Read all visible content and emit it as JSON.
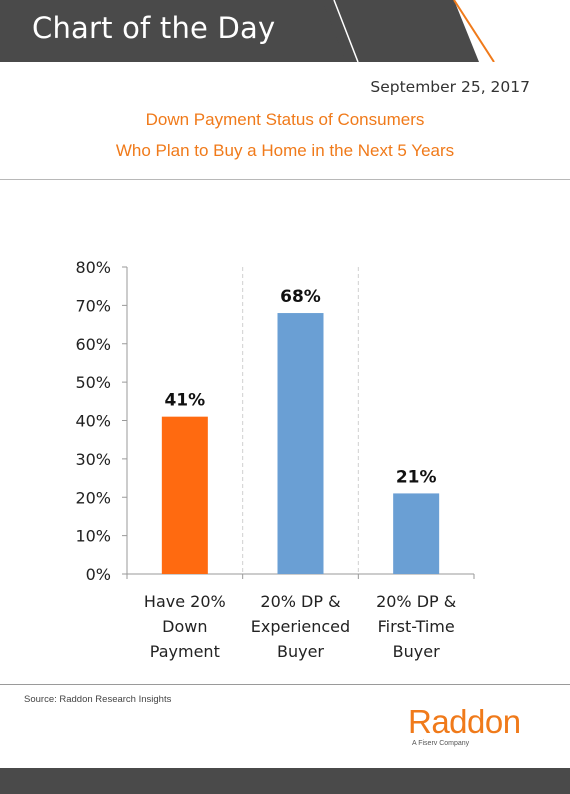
{
  "header": {
    "title": "Chart of the Day"
  },
  "date": "September 25, 2017",
  "footer": {
    "source": "Source: Raddon Research Insights",
    "logo": "Raddon",
    "logo_tagline": "A Fiserv Company"
  },
  "colors": {
    "accent": "#f07a1a",
    "highlight_bar": "#ff6a10",
    "bar": "#6a9fd4",
    "header_bg": "#4a4a4a"
  },
  "chart_data": {
    "type": "bar",
    "title": [
      "Down Payment Status of Consumers",
      "Who Plan to Buy a Home in the Next 5 Years"
    ],
    "xlabel": "",
    "ylabel": "",
    "categories": [
      [
        "Have 20%",
        "Down",
        "Payment"
      ],
      [
        "20% DP &",
        "Experienced",
        "Buyer"
      ],
      [
        "20% DP &",
        "First-Time",
        "Buyer"
      ]
    ],
    "values": [
      41,
      68,
      21
    ],
    "data_labels": [
      "41%",
      "68%",
      "21%"
    ],
    "ylim": [
      0,
      80
    ],
    "yticks": [
      "0%",
      "10%",
      "20%",
      "30%",
      "40%",
      "50%",
      "60%",
      "70%",
      "80%"
    ],
    "grid": "vertical dashed separators",
    "bar_colors": [
      "#ff6a10",
      "#6a9fd4",
      "#6a9fd4"
    ]
  }
}
